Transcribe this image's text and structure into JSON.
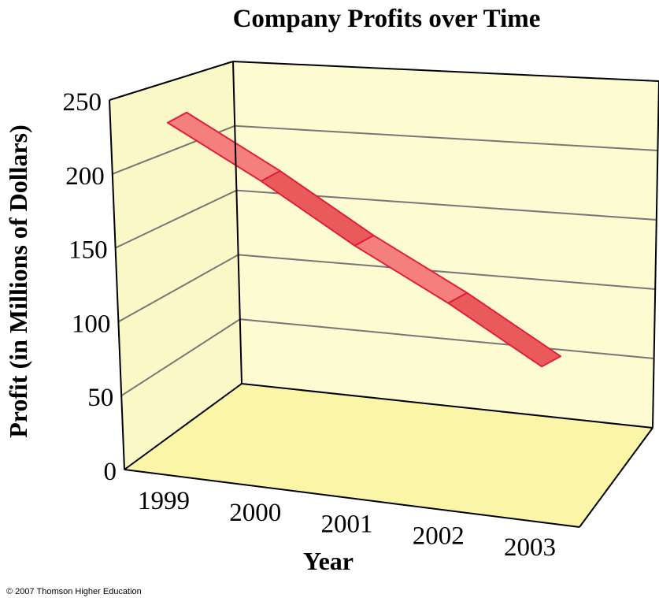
{
  "chart_data": {
    "type": "line",
    "title": "Company Profits over Time",
    "xlabel": "Year",
    "ylabel": "Profit (in Millions of Dollars)",
    "categories": [
      "1999",
      "2000",
      "2001",
      "2002",
      "2003"
    ],
    "values": [
      240,
      200,
      155,
      115,
      70
    ],
    "y_ticks": [
      "0",
      "50",
      "100",
      "150",
      "200",
      "250"
    ],
    "ylim": [
      0,
      250
    ],
    "grid": true,
    "three_d": true
  },
  "copyright": "© 2007 Thomson Higher Education",
  "colors": {
    "back_wall": "#FDFBD2",
    "side_wall": "#FBF8C7",
    "floor": "#FBF5A8",
    "ribbon_light": "#F47F7D",
    "ribbon_dark": "#E95A5A",
    "ribbon_stroke": "#E01E3C",
    "grid": "#777777",
    "frame": "#000000"
  }
}
